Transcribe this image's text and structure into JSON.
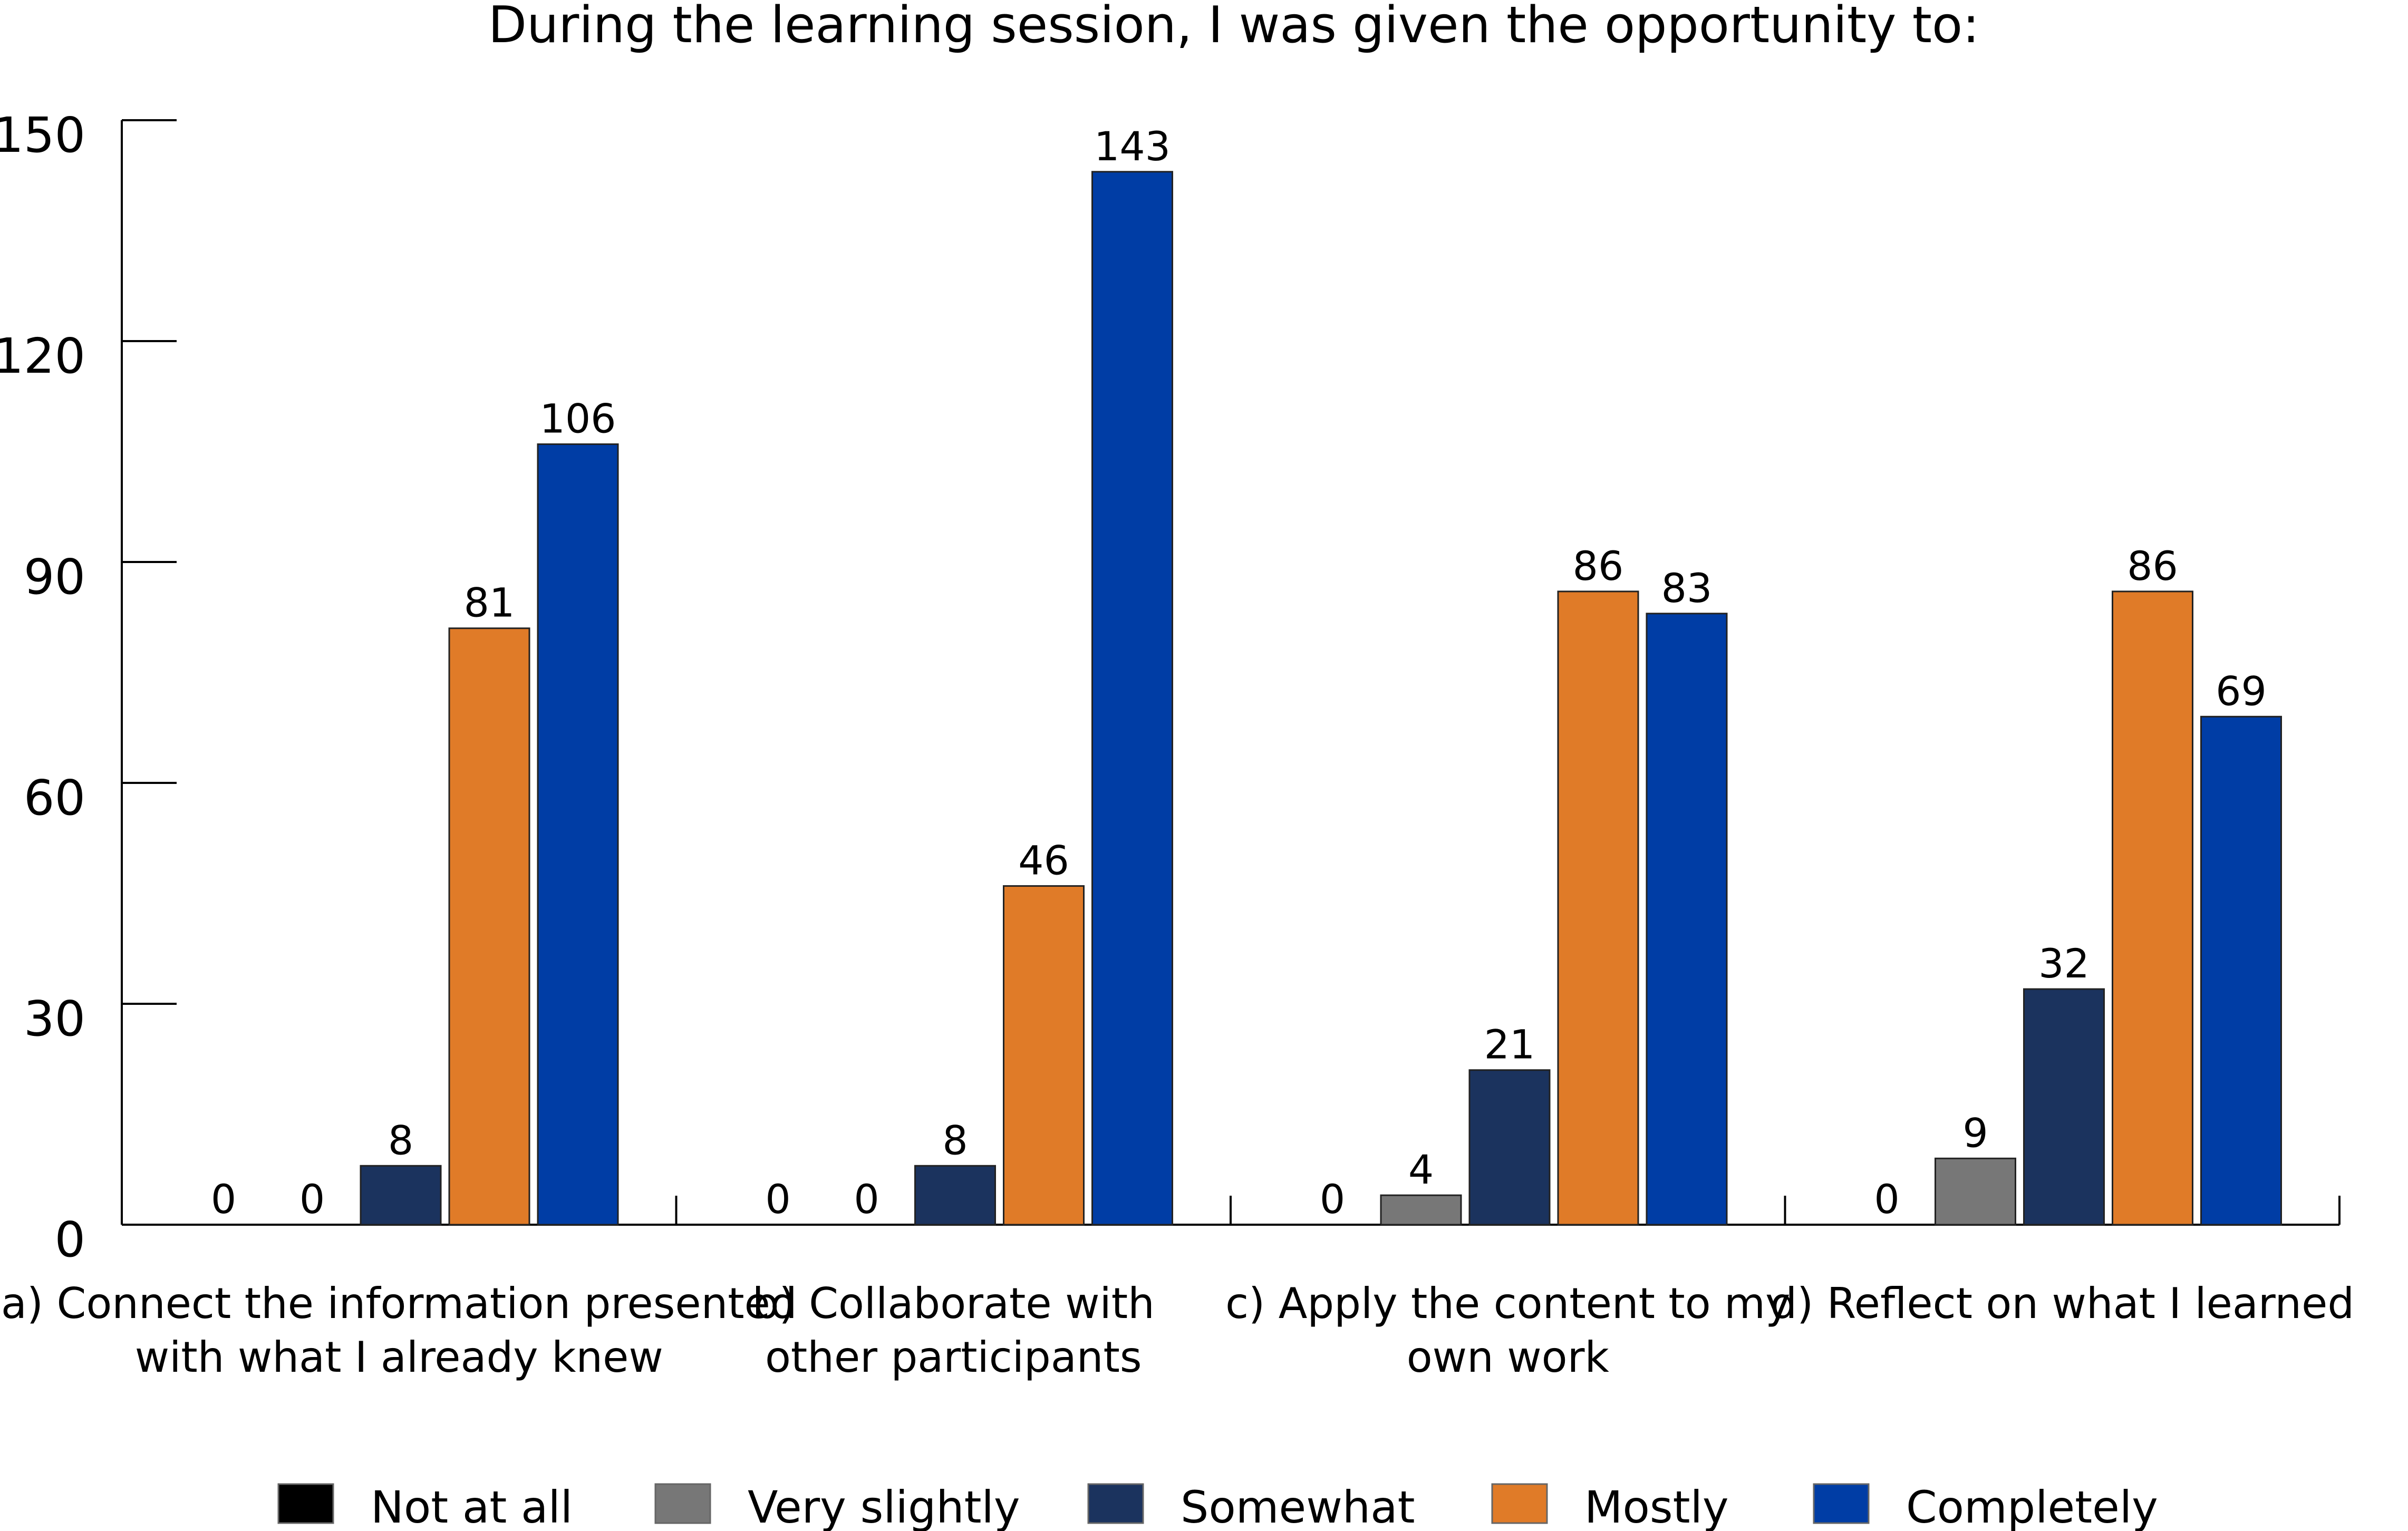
{
  "chart_data": {
    "type": "bar",
    "title": "During the learning session, I was given the opportunity to:",
    "xlabel": "",
    "ylabel": "",
    "ylim": [
      0,
      150
    ],
    "yticks": [
      0,
      30,
      60,
      90,
      120,
      150
    ],
    "grid": false,
    "legend_position": "bottom",
    "categories": [
      [
        "a) Connect the information presented",
        "with what I already knew"
      ],
      [
        "b) Collaborate with",
        "other participants"
      ],
      [
        "c) Apply the content to my",
        "own work"
      ],
      [
        "d) Reflect on what I learned"
      ]
    ],
    "series": [
      {
        "name": "Not at all",
        "color": "#000000",
        "values": [
          0,
          0,
          0,
          0
        ]
      },
      {
        "name": "Very slightly",
        "color": "#777777",
        "values": [
          0,
          0,
          4,
          9
        ]
      },
      {
        "name": "Somewhat",
        "color": "#1b335e",
        "values": [
          8,
          8,
          21,
          32
        ]
      },
      {
        "name": "Mostly",
        "color": "#e07b28",
        "values": [
          81,
          46,
          86,
          86
        ]
      },
      {
        "name": "Completely",
        "color": "#003da5",
        "values": [
          106,
          143,
          83,
          69
        ]
      }
    ]
  }
}
